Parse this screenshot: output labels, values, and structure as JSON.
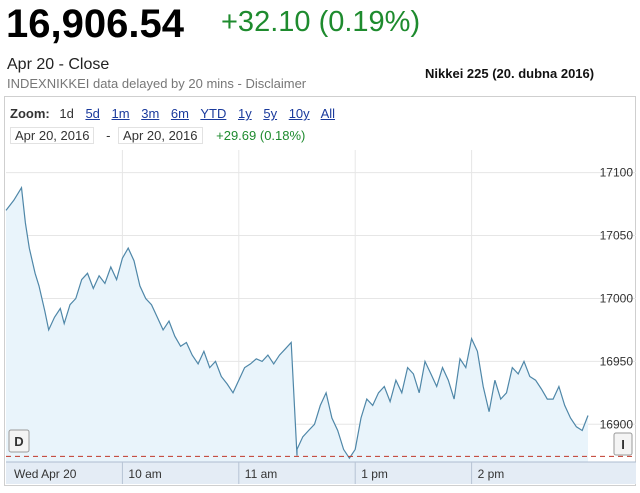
{
  "quote": {
    "price": "16,906.54",
    "change": "+32.10 (0.19%)",
    "close_label": "Apr 20 - Close",
    "delay_note_prefix": "INDEXNIKKEI data delayed by 20 mins - ",
    "disclaimer_link": "Disclaimer"
  },
  "caption": "Nikkei 225 (20. dubna 2016)",
  "zoom": {
    "label": "Zoom:",
    "options": [
      "1d",
      "5d",
      "1m",
      "3m",
      "6m",
      "YTD",
      "1y",
      "5y",
      "10y",
      "All"
    ],
    "active": "1d"
  },
  "range": {
    "from": "Apr 20, 2016",
    "separator": "-",
    "to": "Apr 20, 2016",
    "change": "+29.69 (0.18%)"
  },
  "markers": {
    "left": "D",
    "right": "I"
  },
  "colors": {
    "line": "#4f87a8",
    "fill": "#e9f4fb",
    "positive": "#1e8b2e",
    "prev_close_line": "#c0392b"
  },
  "chart_data": {
    "type": "area",
    "x_labels": [
      "Wed Apr 20",
      "10 am",
      "11 am",
      "1 pm",
      "2 pm"
    ],
    "y_ticks": [
      16900,
      16950,
      17000,
      17050,
      17100
    ],
    "y_tick_labels": [
      "16900",
      "16950",
      "17000",
      "17050",
      "17100"
    ],
    "ylim": [
      16870,
      17118
    ],
    "x": [
      "09:00",
      "09:04",
      "09:08",
      "09:10",
      "09:12",
      "09:15",
      "09:17",
      "09:20",
      "09:22",
      "09:25",
      "09:28",
      "09:30",
      "09:33",
      "09:36",
      "09:39",
      "09:42",
      "09:45",
      "09:48",
      "09:51",
      "09:54",
      "09:57",
      "10:00",
      "10:03",
      "10:06",
      "10:09",
      "10:12",
      "10:15",
      "10:18",
      "10:21",
      "10:24",
      "10:27",
      "10:30",
      "10:33",
      "10:36",
      "10:39",
      "10:42",
      "10:45",
      "10:48",
      "10:51",
      "10:54",
      "10:57",
      "11:00",
      "11:03",
      "11:06",
      "11:09",
      "11:12",
      "11:15",
      "11:18",
      "11:21",
      "11:24",
      "11:27",
      "11:30",
      "12:30",
      "12:33",
      "12:36",
      "12:39",
      "12:42",
      "12:45",
      "12:48",
      "12:51",
      "12:54",
      "12:57",
      "13:00",
      "13:03",
      "13:06",
      "13:09",
      "13:12",
      "13:15",
      "13:18",
      "13:21",
      "13:24",
      "13:27",
      "13:30",
      "13:33",
      "13:36",
      "13:39",
      "13:42",
      "13:45",
      "13:48",
      "13:51",
      "13:54",
      "13:57",
      "14:00",
      "14:03",
      "14:06",
      "14:09",
      "14:12",
      "14:15",
      "14:18",
      "14:21",
      "14:24",
      "14:27",
      "14:30",
      "14:33",
      "14:36",
      "14:39",
      "14:42",
      "14:45",
      "14:48",
      "14:51",
      "14:54",
      "14:57",
      "15:00"
    ],
    "values": [
      17070,
      17078,
      17088,
      17060,
      17040,
      17020,
      17010,
      16990,
      16975,
      16985,
      16992,
      16980,
      16995,
      17000,
      17015,
      17020,
      17008,
      17018,
      17012,
      17025,
      17015,
      17032,
      17040,
      17030,
      17010,
      17000,
      16995,
      16985,
      16975,
      16982,
      16970,
      16962,
      16965,
      16955,
      16948,
      16958,
      16945,
      16950,
      16938,
      16932,
      16925,
      16935,
      16945,
      16948,
      16952,
      16950,
      16955,
      16948,
      16955,
      16960,
      16965,
      16875,
      16880,
      16890,
      16895,
      16900,
      16915,
      16925,
      16905,
      16895,
      16880,
      16873,
      16880,
      16905,
      16920,
      16915,
      16925,
      16930,
      16918,
      16935,
      16925,
      16945,
      16940,
      16925,
      16950,
      16940,
      16930,
      16945,
      16935,
      16920,
      16952,
      16945,
      16968,
      16958,
      16930,
      16910,
      16935,
      16920,
      16925,
      16945,
      16940,
      16950,
      16938,
      16935,
      16928,
      16920,
      16920,
      16930,
      16915,
      16905,
      16898,
      16895,
      16907
    ],
    "prev_close": 16874.44
  }
}
